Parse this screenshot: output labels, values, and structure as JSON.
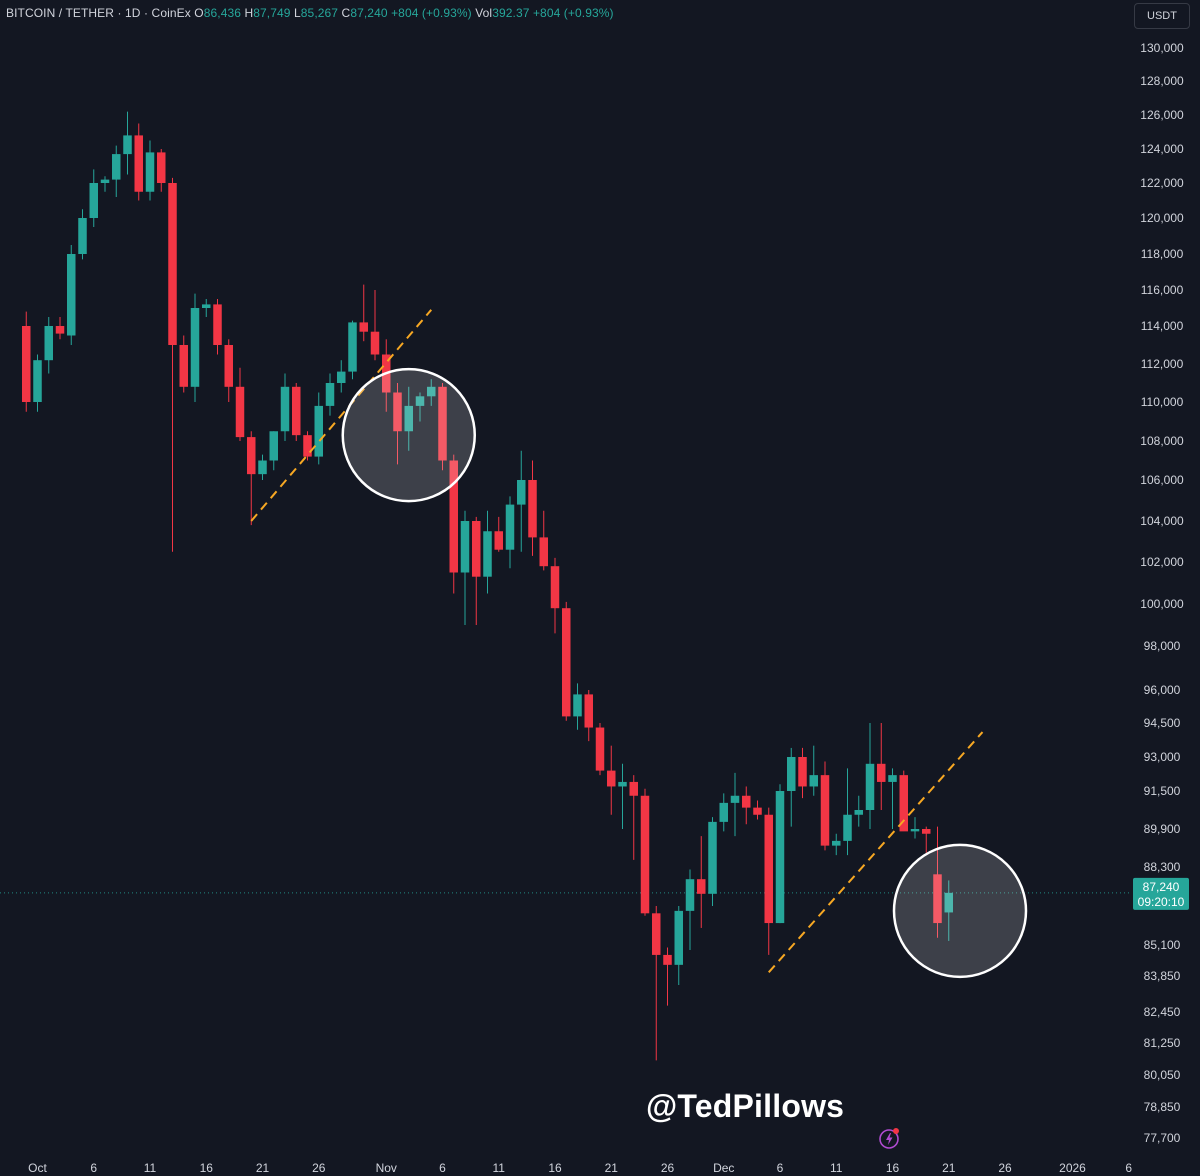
{
  "header": {
    "symbol": "BITCOIN / TETHER",
    "interval": "1D",
    "exchange": "CoinEx",
    "open_label": "O",
    "open": "86,436",
    "high_label": "H",
    "high": "87,749",
    "low_label": "L",
    "low": "85,267",
    "close_label": "C",
    "close": "87,240",
    "change": "+804 (+0.93%)",
    "vol_label": "Vol",
    "vol": "392.37",
    "vol_change": "+804 (+0.93%)"
  },
  "currency_button": "USDT",
  "watermark": "@TedPillows",
  "chart_data": {
    "type": "candlestick",
    "title": "BITCOIN / TETHER · 1D · CoinEx",
    "ylabel": "USDT",
    "y_ticks": [
      130000,
      128000,
      126000,
      124000,
      122000,
      120000,
      118000,
      116000,
      114000,
      112000,
      110000,
      108000,
      106000,
      104000,
      102000,
      100000,
      98000,
      96000,
      94500,
      93000,
      91500,
      89900,
      88300,
      85100,
      83850,
      82450,
      81250,
      80050,
      78850,
      77700
    ],
    "y_tick_labels": [
      "130,000",
      "128,000",
      "126,000",
      "124,000",
      "122,000",
      "120,000",
      "118,000",
      "116,000",
      "114,000",
      "112,000",
      "110,000",
      "108,000",
      "106,000",
      "104,000",
      "102,000",
      "100,000",
      "98,000",
      "96,000",
      "94,500",
      "93,000",
      "91,500",
      "89,900",
      "88,300",
      "85,100",
      "83,850",
      "82,450",
      "81,250",
      "80,050",
      "78,850",
      "77,700"
    ],
    "x_ticks": [
      {
        "label": "Oct",
        "date": "2025-10-01"
      },
      {
        "label": "6",
        "date": "2025-10-06"
      },
      {
        "label": "11",
        "date": "2025-10-11"
      },
      {
        "label": "16",
        "date": "2025-10-16"
      },
      {
        "label": "21",
        "date": "2025-10-21"
      },
      {
        "label": "26",
        "date": "2025-10-26"
      },
      {
        "label": "Nov",
        "date": "2025-11-01"
      },
      {
        "label": "6",
        "date": "2025-11-06"
      },
      {
        "label": "11",
        "date": "2025-11-11"
      },
      {
        "label": "16",
        "date": "2025-11-16"
      },
      {
        "label": "21",
        "date": "2025-11-21"
      },
      {
        "label": "26",
        "date": "2025-11-26"
      },
      {
        "label": "Dec",
        "date": "2025-12-01"
      },
      {
        "label": "6",
        "date": "2025-12-06"
      },
      {
        "label": "11",
        "date": "2025-12-11"
      },
      {
        "label": "16",
        "date": "2025-12-16"
      },
      {
        "label": "21",
        "date": "2025-12-21"
      },
      {
        "label": "26",
        "date": "2025-12-26"
      },
      {
        "label": "2026",
        "date": "2026-01-01"
      },
      {
        "label": "6",
        "date": "2026-01-06"
      }
    ],
    "candles": [
      {
        "date": "2025-09-30",
        "o": 114000,
        "h": 114800,
        "l": 109500,
        "c": 110000
      },
      {
        "date": "2025-10-01",
        "o": 110000,
        "h": 112500,
        "l": 109500,
        "c": 112200
      },
      {
        "date": "2025-10-02",
        "o": 112200,
        "h": 114500,
        "l": 111500,
        "c": 114000
      },
      {
        "date": "2025-10-03",
        "o": 114000,
        "h": 114500,
        "l": 113300,
        "c": 113600
      },
      {
        "date": "2025-10-04",
        "o": 113500,
        "h": 118500,
        "l": 113000,
        "c": 118000
      },
      {
        "date": "2025-10-05",
        "o": 118000,
        "h": 120500,
        "l": 117700,
        "c": 120000
      },
      {
        "date": "2025-10-06",
        "o": 120000,
        "h": 122800,
        "l": 119500,
        "c": 122000
      },
      {
        "date": "2025-10-07",
        "o": 122000,
        "h": 122400,
        "l": 121500,
        "c": 122200
      },
      {
        "date": "2025-10-08",
        "o": 122200,
        "h": 124200,
        "l": 121200,
        "c": 123700
      },
      {
        "date": "2025-10-09",
        "o": 123700,
        "h": 126200,
        "l": 122500,
        "c": 124800
      },
      {
        "date": "2025-10-10",
        "o": 124800,
        "h": 125500,
        "l": 121000,
        "c": 121500
      },
      {
        "date": "2025-10-11",
        "o": 121500,
        "h": 124500,
        "l": 121000,
        "c": 123800
      },
      {
        "date": "2025-10-12",
        "o": 123800,
        "h": 124000,
        "l": 121500,
        "c": 122000
      },
      {
        "date": "2025-10-13",
        "o": 122000,
        "h": 122300,
        "l": 102500,
        "c": 113000
      },
      {
        "date": "2025-10-14",
        "o": 113000,
        "h": 113500,
        "l": 110500,
        "c": 110800
      },
      {
        "date": "2025-10-15",
        "o": 110800,
        "h": 115800,
        "l": 110000,
        "c": 115000
      },
      {
        "date": "2025-10-16",
        "o": 115000,
        "h": 115500,
        "l": 114500,
        "c": 115200
      },
      {
        "date": "2025-10-17",
        "o": 115200,
        "h": 115500,
        "l": 112500,
        "c": 113000
      },
      {
        "date": "2025-10-18",
        "o": 113000,
        "h": 113300,
        "l": 110000,
        "c": 110800
      },
      {
        "date": "2025-10-19",
        "o": 110800,
        "h": 111800,
        "l": 108000,
        "c": 108200
      },
      {
        "date": "2025-10-20",
        "o": 108200,
        "h": 108500,
        "l": 103800,
        "c": 106300
      },
      {
        "date": "2025-10-21",
        "o": 106300,
        "h": 107300,
        "l": 106000,
        "c": 107000
      },
      {
        "date": "2025-10-22",
        "o": 107000,
        "h": 108500,
        "l": 106500,
        "c": 108500
      },
      {
        "date": "2025-10-23",
        "o": 108500,
        "h": 111500,
        "l": 108000,
        "c": 110800
      },
      {
        "date": "2025-10-24",
        "o": 110800,
        "h": 111000,
        "l": 108000,
        "c": 108300
      },
      {
        "date": "2025-10-25",
        "o": 108300,
        "h": 108500,
        "l": 107000,
        "c": 107200
      },
      {
        "date": "2025-10-26",
        "o": 107200,
        "h": 110500,
        "l": 106800,
        "c": 109800
      },
      {
        "date": "2025-10-27",
        "o": 109800,
        "h": 111500,
        "l": 109300,
        "c": 111000
      },
      {
        "date": "2025-10-28",
        "o": 111000,
        "h": 112200,
        "l": 110500,
        "c": 111600
      },
      {
        "date": "2025-10-29",
        "o": 111600,
        "h": 114300,
        "l": 111200,
        "c": 114200
      },
      {
        "date": "2025-10-30",
        "o": 114200,
        "h": 116300,
        "l": 113200,
        "c": 113700
      },
      {
        "date": "2025-10-31",
        "o": 113700,
        "h": 116000,
        "l": 112200,
        "c": 112500
      },
      {
        "date": "2025-11-01",
        "o": 112500,
        "h": 113300,
        "l": 109500,
        "c": 110500
      },
      {
        "date": "2025-11-02",
        "o": 110500,
        "h": 111000,
        "l": 106800,
        "c": 108500
      },
      {
        "date": "2025-11-03",
        "o": 108500,
        "h": 110800,
        "l": 107500,
        "c": 109800
      },
      {
        "date": "2025-11-04",
        "o": 109800,
        "h": 110500,
        "l": 109000,
        "c": 110300
      },
      {
        "date": "2025-11-05",
        "o": 110300,
        "h": 111200,
        "l": 109800,
        "c": 110800
      },
      {
        "date": "2025-11-06",
        "o": 110800,
        "h": 111000,
        "l": 106500,
        "c": 107000
      },
      {
        "date": "2025-11-07",
        "o": 107000,
        "h": 107300,
        "l": 100500,
        "c": 101500
      },
      {
        "date": "2025-11-08",
        "o": 101500,
        "h": 104500,
        "l": 99000,
        "c": 104000
      },
      {
        "date": "2025-11-09",
        "o": 104000,
        "h": 104200,
        "l": 99000,
        "c": 101300
      },
      {
        "date": "2025-11-10",
        "o": 101300,
        "h": 104500,
        "l": 100500,
        "c": 103500
      },
      {
        "date": "2025-11-11",
        "o": 103500,
        "h": 104200,
        "l": 102500,
        "c": 102600
      },
      {
        "date": "2025-11-12",
        "o": 102600,
        "h": 105200,
        "l": 101700,
        "c": 104800
      },
      {
        "date": "2025-11-13",
        "o": 104800,
        "h": 107500,
        "l": 102500,
        "c": 106000
      },
      {
        "date": "2025-11-14",
        "o": 106000,
        "h": 107000,
        "l": 102300,
        "c": 103200
      },
      {
        "date": "2025-11-15",
        "o": 103200,
        "h": 104500,
        "l": 101600,
        "c": 101800
      },
      {
        "date": "2025-11-16",
        "o": 101800,
        "h": 102200,
        "l": 98600,
        "c": 99800
      },
      {
        "date": "2025-11-17",
        "o": 99800,
        "h": 100100,
        "l": 94600,
        "c": 94800
      },
      {
        "date": "2025-11-18",
        "o": 94800,
        "h": 96300,
        "l": 94200,
        "c": 95800
      },
      {
        "date": "2025-11-19",
        "o": 95800,
        "h": 96000,
        "l": 93700,
        "c": 94300
      },
      {
        "date": "2025-11-20",
        "o": 94300,
        "h": 94500,
        "l": 92200,
        "c": 92400
      },
      {
        "date": "2025-11-21",
        "o": 92400,
        "h": 93500,
        "l": 90500,
        "c": 91700
      },
      {
        "date": "2025-11-22",
        "o": 91700,
        "h": 92700,
        "l": 89900,
        "c": 91900
      },
      {
        "date": "2025-11-23",
        "o": 91900,
        "h": 92200,
        "l": 88600,
        "c": 91300
      },
      {
        "date": "2025-11-24",
        "o": 91300,
        "h": 91600,
        "l": 86300,
        "c": 86400
      },
      {
        "date": "2025-11-25",
        "o": 86400,
        "h": 86700,
        "l": 80600,
        "c": 84700
      },
      {
        "date": "2025-11-26",
        "o": 84700,
        "h": 85000,
        "l": 82700,
        "c": 84300
      },
      {
        "date": "2025-11-27",
        "o": 84300,
        "h": 86700,
        "l": 83500,
        "c": 86500
      },
      {
        "date": "2025-11-28",
        "o": 86500,
        "h": 88200,
        "l": 84900,
        "c": 87800
      },
      {
        "date": "2025-11-29",
        "o": 87800,
        "h": 89600,
        "l": 85800,
        "c": 87200
      },
      {
        "date": "2025-11-30",
        "o": 87200,
        "h": 90400,
        "l": 86700,
        "c": 90200
      },
      {
        "date": "2025-12-01",
        "o": 90200,
        "h": 91400,
        "l": 89800,
        "c": 91000
      },
      {
        "date": "2025-12-02",
        "o": 91000,
        "h": 92300,
        "l": 89600,
        "c": 91300
      },
      {
        "date": "2025-12-03",
        "o": 91300,
        "h": 91700,
        "l": 90100,
        "c": 90800
      },
      {
        "date": "2025-12-04",
        "o": 90800,
        "h": 91100,
        "l": 90300,
        "c": 90500
      },
      {
        "date": "2025-12-05",
        "o": 90500,
        "h": 90800,
        "l": 84700,
        "c": 86000
      },
      {
        "date": "2025-12-06",
        "o": 86000,
        "h": 91800,
        "l": 86000,
        "c": 91500
      },
      {
        "date": "2025-12-07",
        "o": 91500,
        "h": 93400,
        "l": 90000,
        "c": 93000
      },
      {
        "date": "2025-12-08",
        "o": 93000,
        "h": 93400,
        "l": 91200,
        "c": 91700
      },
      {
        "date": "2025-12-09",
        "o": 91700,
        "h": 93500,
        "l": 91300,
        "c": 92200
      },
      {
        "date": "2025-12-10",
        "o": 92200,
        "h": 92800,
        "l": 89000,
        "c": 89200
      },
      {
        "date": "2025-12-11",
        "o": 89200,
        "h": 89700,
        "l": 88800,
        "c": 89400
      },
      {
        "date": "2025-12-12",
        "o": 89400,
        "h": 92500,
        "l": 88800,
        "c": 90500
      },
      {
        "date": "2025-12-13",
        "o": 90500,
        "h": 91300,
        "l": 90000,
        "c": 90700
      },
      {
        "date": "2025-12-14",
        "o": 90700,
        "h": 94500,
        "l": 89900,
        "c": 92700
      },
      {
        "date": "2025-12-15",
        "o": 92700,
        "h": 94500,
        "l": 90700,
        "c": 91900
      },
      {
        "date": "2025-12-16",
        "o": 91900,
        "h": 92500,
        "l": 89900,
        "c": 92200
      },
      {
        "date": "2025-12-17",
        "o": 92200,
        "h": 92400,
        "l": 89900,
        "c": 89800
      },
      {
        "date": "2025-12-18",
        "o": 89800,
        "h": 90400,
        "l": 89500,
        "c": 89900
      },
      {
        "date": "2025-12-19",
        "o": 89900,
        "h": 90000,
        "l": 88900,
        "c": 89700
      },
      {
        "date": "2025-12-20",
        "o": 88000,
        "h": 90000,
        "l": 85400,
        "c": 86000
      },
      {
        "date": "2025-12-21",
        "o": 86436,
        "h": 87749,
        "l": 85267,
        "c": 87240
      }
    ],
    "current_price": 87240,
    "current_price_label": "87,240",
    "countdown": "09:20:10",
    "colors": {
      "up": "#26a69a",
      "down": "#f23645",
      "trendline": "#f7a823",
      "background": "#131722",
      "circle": "#ffffff",
      "price_tag": "#26a69a"
    },
    "trendlines": [
      {
        "from": {
          "date": "2025-10-20",
          "price": 104000
        },
        "to": {
          "date": "2025-11-05",
          "price": 114900
        }
      },
      {
        "from": {
          "date": "2025-12-05",
          "price": 84000
        },
        "to": {
          "date": "2025-12-24",
          "price": 94100
        }
      }
    ],
    "highlight_circles": [
      {
        "center": {
          "date": "2025-11-03",
          "price": 108300
        }
      },
      {
        "center": {
          "date": "2025-12-22",
          "price": 86500
        }
      }
    ],
    "grid": false,
    "legend": "top-left"
  }
}
